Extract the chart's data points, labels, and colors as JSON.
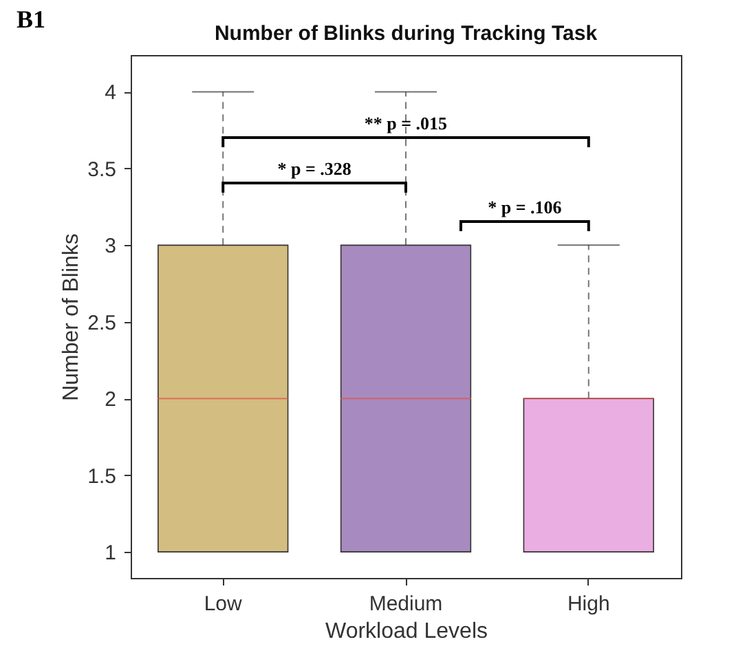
{
  "chart_data": {
    "type": "box",
    "title": "Number of Blinks during Tracking Task",
    "xlabel": "Workload Levels",
    "ylabel": "Number of Blinks",
    "categories": [
      "Low",
      "Medium",
      "High"
    ],
    "boxes": [
      {
        "low": 1,
        "q1": 1,
        "median": 2,
        "q3": 3,
        "high": 4
      },
      {
        "low": 1,
        "q1": 1,
        "median": 2,
        "q3": 3,
        "high": 4
      },
      {
        "low": 1,
        "q1": 1,
        "median": 2,
        "q3": 2,
        "high": 3
      }
    ],
    "colors": [
      "#d4bd80",
      "#a78abf",
      "#eaaee2"
    ],
    "ylim": [
      0.83,
      4.24
    ],
    "yticks": [
      1,
      1.5,
      2,
      2.5,
      3,
      3.5,
      4
    ],
    "grid": false,
    "annotations": [
      "B1",
      "** p = .015",
      "* p = .328",
      "* p = .106"
    ]
  }
}
